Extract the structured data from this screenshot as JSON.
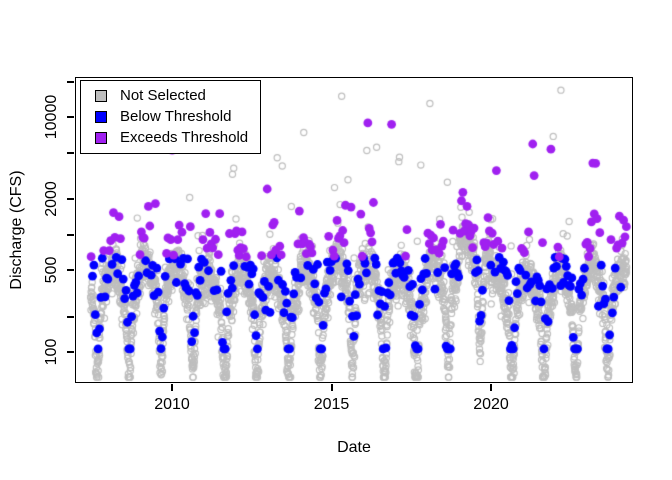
{
  "chart_data": {
    "type": "scatter",
    "title": "",
    "xlabel": "Date",
    "ylabel": "Discharge (CFS)",
    "x_axis": {
      "ticks": [
        2010,
        2015,
        2020
      ],
      "range_years": [
        2006.96,
        2024.45
      ],
      "grid": false
    },
    "y_axis": {
      "scale": "log10",
      "labeled_ticks": [
        100,
        500,
        2000,
        10000
      ],
      "minor_ticks": [
        200,
        1000,
        5000,
        20000
      ],
      "range_cfs": [
        55,
        22000
      ],
      "grid": false
    },
    "legend": {
      "position": "topleft",
      "entries": [
        {
          "label": "Not Selected",
          "color": "#BEBEBE",
          "marker": "square"
        },
        {
          "label": "Below Threshold",
          "color": "#0000FF",
          "marker": "square"
        },
        {
          "label": "Exceeds Threshold",
          "color": "#A020F0",
          "marker": "square"
        }
      ]
    },
    "series": [
      {
        "name": "Not Selected",
        "marker": "open-circle",
        "color": "#BEBEBE",
        "description": "Daily discharge observations, ~2007.5 to ~2024.2, seasonal band roughly 80-800 CFS with storm spikes up to ~20000 CFS"
      },
      {
        "name": "Below Threshold",
        "marker": "filled-circle",
        "color": "#0000FF",
        "description": "Selected (roughly biweekly) discharge values at or below ~650 CFS, range ~110-650 CFS"
      },
      {
        "name": "Exceeds Threshold",
        "marker": "filled-circle",
        "color": "#A020F0",
        "description": "Selected (roughly biweekly) discharge values above ~650 CFS, range ~650-12000 CFS"
      }
    ],
    "generation": {
      "seed": 42,
      "threshold_cfs": 650,
      "daily": {
        "start_year": 2007.45,
        "end_year": 2024.25,
        "step_days": 2,
        "base_log10": 2.52,
        "seasonal_amp_log10": 0.18,
        "trough_depth_log10": 0.55,
        "noise_sd_log10": 0.09,
        "big_spike_prob": 0.012,
        "minor_spike_prob": 0.05,
        "wet_year_2019_log10": 0.3,
        "clamp_log10": [
          1.79,
          4.32
        ]
      },
      "selected": {
        "interval_days": 16,
        "bias_log10": 0.17,
        "noise_sd_log10": 0.16,
        "spike_prob": 0.06,
        "clamp_log10": [
          2.03,
          4.1
        ]
      }
    },
    "style": {
      "open_circle_radius_px": 3.1,
      "open_circle_stroke_px": 1.2,
      "filled_circle_radius_px": 4.4,
      "axis_color": "#000000",
      "background": "#FFFFFF"
    }
  },
  "layout_text": {
    "x_axis_title": "Date",
    "y_axis_title": "Discharge (CFS)"
  }
}
